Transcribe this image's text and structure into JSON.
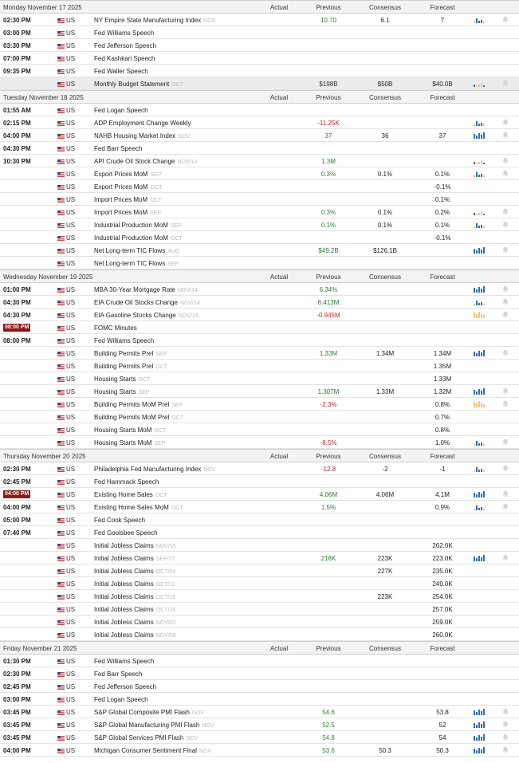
{
  "columns": {
    "actual": "Actual",
    "previous": "Previous",
    "consensus": "Consensus",
    "forecast": "Forecast"
  },
  "colors": {
    "positive": "#2e7d32",
    "negative": "#c62828",
    "badge": "#8b1a1a",
    "chart_blue": "#2f6db5",
    "chart_orange": "#f5c57a"
  },
  "days": [
    {
      "title": "Monday November 17 2025",
      "rows": [
        {
          "time": "02:30 PM",
          "country": "US",
          "event": "NY Empire State Manufacturing Index",
          "ref": "NOV",
          "actual": "",
          "previous": "10.70",
          "previous_tone": "pos",
          "consensus": "6.1",
          "forecast": "7",
          "chart": "blue-mixed",
          "bell": true
        },
        {
          "time": "03:00 PM",
          "country": "US",
          "event": "Fed Williams Speech",
          "ref": "",
          "actual": "",
          "previous": "",
          "consensus": "",
          "forecast": "",
          "chart": "",
          "bell": false
        },
        {
          "time": "03:30 PM",
          "country": "US",
          "event": "Fed Jefferson Speech",
          "ref": "",
          "actual": "",
          "previous": "",
          "consensus": "",
          "forecast": "",
          "chart": "",
          "bell": false
        },
        {
          "time": "07:00 PM",
          "country": "US",
          "event": "Fed Kashkari Speech",
          "ref": "",
          "actual": "",
          "previous": "",
          "consensus": "",
          "forecast": "",
          "chart": "",
          "bell": false
        },
        {
          "time": "09:35 PM",
          "country": "US",
          "event": "Fed Waller Speech",
          "ref": "",
          "actual": "",
          "previous": "",
          "consensus": "",
          "forecast": "",
          "chart": "",
          "bell": false
        },
        {
          "time": "",
          "country": "US",
          "event": "Monthly Budget Statement",
          "ref": "OCT",
          "actual": "",
          "previous": "$198B",
          "previous_tone": "neu",
          "consensus": "$50B",
          "forecast": "$40.0B",
          "chart": "mixed",
          "bell": true,
          "highlight": true
        }
      ]
    },
    {
      "title": "Tuesday November 18 2025",
      "rows": [
        {
          "time": "01:55 AM",
          "country": "US",
          "event": "Fed Logan Speech",
          "ref": "",
          "actual": "",
          "previous": "",
          "consensus": "",
          "forecast": "",
          "chart": "",
          "bell": false
        },
        {
          "time": "02:15 PM",
          "country": "US",
          "event": "ADP Employment Change Weekly",
          "ref": "",
          "actual": "",
          "previous": "-11.25K",
          "previous_tone": "neg",
          "consensus": "",
          "forecast": "",
          "chart": "blue-mixed",
          "bell": true
        },
        {
          "time": "04:00 PM",
          "country": "US",
          "event": "NAHB Housing Market Index",
          "ref": "NOV",
          "actual": "",
          "previous": "37",
          "previous_tone": "pos",
          "consensus": "36",
          "forecast": "37",
          "chart": "blue",
          "bell": true
        },
        {
          "time": "04:30 PM",
          "country": "US",
          "event": "Fed Barr Speech",
          "ref": "",
          "actual": "",
          "previous": "",
          "consensus": "",
          "forecast": "",
          "chart": "",
          "bell": false
        },
        {
          "time": "10:30 PM",
          "country": "US",
          "event": "API Crude Oil Stock Change",
          "ref": "NOV/14",
          "actual": "",
          "previous": "1.3M",
          "previous_tone": "pos",
          "consensus": "",
          "forecast": "",
          "chart": "mixed",
          "bell": true
        },
        {
          "time": "",
          "country": "US",
          "event": "Export Prices MoM",
          "ref": "SEP",
          "actual": "",
          "previous": "0.3%",
          "previous_tone": "pos",
          "consensus": "0.1%",
          "forecast": "0.1%",
          "chart": "blue-mixed",
          "bell": true
        },
        {
          "time": "",
          "country": "US",
          "event": "Export Prices MoM",
          "ref": "OCT",
          "actual": "",
          "previous": "",
          "consensus": "",
          "forecast": "-0.1%",
          "chart": "",
          "bell": false
        },
        {
          "time": "",
          "country": "US",
          "event": "Import Prices MoM",
          "ref": "OCT",
          "actual": "",
          "previous": "",
          "consensus": "",
          "forecast": "0.1%",
          "chart": "",
          "bell": false
        },
        {
          "time": "",
          "country": "US",
          "event": "Import Prices MoM",
          "ref": "SEP",
          "actual": "",
          "previous": "0.3%",
          "previous_tone": "pos",
          "consensus": "0.1%",
          "forecast": "0.2%",
          "chart": "mixed",
          "bell": true
        },
        {
          "time": "",
          "country": "US",
          "event": "Industrial Production MoM",
          "ref": "SEP",
          "actual": "",
          "previous": "0.1%",
          "previous_tone": "pos",
          "consensus": "0.1%",
          "forecast": "0.1%",
          "chart": "blue-mixed",
          "bell": true
        },
        {
          "time": "",
          "country": "US",
          "event": "Industrial Production MoM",
          "ref": "OCT",
          "actual": "",
          "previous": "",
          "consensus": "",
          "forecast": "-0.1%",
          "chart": "",
          "bell": false
        },
        {
          "time": "",
          "country": "US",
          "event": "Net Long-term TIC Flows",
          "ref": "AUG",
          "actual": "",
          "previous": "$49.2B",
          "previous_tone": "pos",
          "consensus": "$126.1B",
          "forecast": "",
          "chart": "blue",
          "bell": true
        },
        {
          "time": "",
          "country": "US",
          "event": "Net Long-term TIC Flows",
          "ref": "SEP",
          "actual": "",
          "previous": "",
          "consensus": "",
          "forecast": "",
          "chart": "",
          "bell": false
        }
      ]
    },
    {
      "title": "Wednesday November 19 2025",
      "rows": [
        {
          "time": "01:00 PM",
          "country": "US",
          "event": "MBA 30-Year Mortgage Rate",
          "ref": "NOV/14",
          "actual": "",
          "previous": "6.34%",
          "previous_tone": "pos",
          "consensus": "",
          "forecast": "",
          "chart": "blue",
          "bell": true
        },
        {
          "time": "04:30 PM",
          "country": "US",
          "event": "EIA Crude Oil Stocks Change",
          "ref": "NOV/14",
          "actual": "",
          "previous": "6.413M",
          "previous_tone": "pos",
          "consensus": "",
          "forecast": "",
          "chart": "blue-mixed",
          "bell": true
        },
        {
          "time": "04:30 PM",
          "country": "US",
          "event": "EIA Gasoline Stocks Change",
          "ref": "NOV/14",
          "actual": "",
          "previous": "-0.945M",
          "previous_tone": "neg",
          "consensus": "",
          "forecast": "",
          "chart": "orange",
          "bell": true
        },
        {
          "time": "08:00 PM",
          "badge": true,
          "country": "US",
          "event": "FOMC Minutes",
          "ref": "",
          "actual": "",
          "previous": "",
          "consensus": "",
          "forecast": "",
          "chart": "",
          "bell": false
        },
        {
          "time": "08:00 PM",
          "country": "US",
          "event": "Fed Williams Speech",
          "ref": "",
          "actual": "",
          "previous": "",
          "consensus": "",
          "forecast": "",
          "chart": "",
          "bell": false
        },
        {
          "time": "",
          "country": "US",
          "event": "Building Permits Prel",
          "ref": "SEP",
          "actual": "",
          "previous": "1.33M",
          "previous_tone": "pos",
          "consensus": "1.34M",
          "forecast": "1.34M",
          "chart": "blue",
          "bell": true
        },
        {
          "time": "",
          "country": "US",
          "event": "Building Permits Prel",
          "ref": "OCT",
          "actual": "",
          "previous": "",
          "consensus": "",
          "forecast": "1.35M",
          "chart": "",
          "bell": false
        },
        {
          "time": "",
          "country": "US",
          "event": "Housing Starts",
          "ref": "OCT",
          "actual": "",
          "previous": "",
          "consensus": "",
          "forecast": "1.33M",
          "chart": "",
          "bell": false
        },
        {
          "time": "",
          "country": "US",
          "event": "Housing Starts",
          "ref": "SEP",
          "actual": "",
          "previous": "1.307M",
          "previous_tone": "pos",
          "consensus": "1.33M",
          "forecast": "1.32M",
          "chart": "blue",
          "bell": true
        },
        {
          "time": "",
          "country": "US",
          "event": "Building Permits MoM Prel",
          "ref": "SEP",
          "actual": "",
          "previous": "-2.3%",
          "previous_tone": "neg",
          "consensus": "",
          "forecast": "0.8%",
          "chart": "orange",
          "bell": true
        },
        {
          "time": "",
          "country": "US",
          "event": "Building Permits MoM Prel",
          "ref": "OCT",
          "actual": "",
          "previous": "",
          "consensus": "",
          "forecast": "0.7%",
          "chart": "",
          "bell": false
        },
        {
          "time": "",
          "country": "US",
          "event": "Housing Starts MoM",
          "ref": "OCT",
          "actual": "",
          "previous": "",
          "consensus": "",
          "forecast": "0.8%",
          "chart": "",
          "bell": false
        },
        {
          "time": "",
          "country": "US",
          "event": "Housing Starts MoM",
          "ref": "SEP",
          "actual": "",
          "previous": "-8.5%",
          "previous_tone": "neg",
          "consensus": "",
          "forecast": "1.0%",
          "chart": "blue-mixed",
          "bell": true
        }
      ]
    },
    {
      "title": "Thursday November 20 2025",
      "rows": [
        {
          "time": "02:30 PM",
          "country": "US",
          "event": "Philadelphia Fed Manufacturing Index",
          "ref": "NOV",
          "actual": "",
          "previous": "-12.8",
          "previous_tone": "neg",
          "consensus": "-2",
          "forecast": "-1",
          "chart": "blue-mixed",
          "bell": true
        },
        {
          "time": "02:45 PM",
          "country": "US",
          "event": "Fed Hammack Speech",
          "ref": "",
          "actual": "",
          "previous": "",
          "consensus": "",
          "forecast": "",
          "chart": "",
          "bell": false
        },
        {
          "time": "04:00 PM",
          "badge": true,
          "country": "US",
          "event": "Existing Home Sales",
          "ref": "OCT",
          "actual": "",
          "previous": "4.06M",
          "previous_tone": "pos",
          "consensus": "4.06M",
          "forecast": "4.1M",
          "chart": "blue",
          "bell": true
        },
        {
          "time": "04:00 PM",
          "country": "US",
          "event": "Existing Home Sales MoM",
          "ref": "OCT",
          "actual": "",
          "previous": "1.5%",
          "previous_tone": "pos",
          "consensus": "",
          "forecast": "0.9%",
          "chart": "blue-mixed",
          "bell": true
        },
        {
          "time": "05:00 PM",
          "country": "US",
          "event": "Fed Cook Speech",
          "ref": "",
          "actual": "",
          "previous": "",
          "consensus": "",
          "forecast": "",
          "chart": "",
          "bell": false
        },
        {
          "time": "07:40 PM",
          "country": "US",
          "event": "Fed Goolsbee Speech",
          "ref": "",
          "actual": "",
          "previous": "",
          "consensus": "",
          "forecast": "",
          "chart": "",
          "bell": false
        },
        {
          "time": "",
          "country": "US",
          "event": "Initial Jobless Claims",
          "ref": "NOV/15",
          "actual": "",
          "previous": "",
          "consensus": "",
          "forecast": "262.0K",
          "chart": "",
          "bell": false
        },
        {
          "time": "",
          "country": "US",
          "event": "Initial Jobless Claims",
          "ref": "SEP/27",
          "actual": "",
          "previous": "218K",
          "previous_tone": "pos",
          "consensus": "223K",
          "forecast": "223.0K",
          "chart": "blue",
          "bell": true
        },
        {
          "time": "",
          "country": "US",
          "event": "Initial Jobless Claims",
          "ref": "OCT/04",
          "actual": "",
          "previous": "",
          "consensus": "227K",
          "forecast": "235.0K",
          "chart": "",
          "bell": false
        },
        {
          "time": "",
          "country": "US",
          "event": "Initial Jobless Claims",
          "ref": "OCT/11",
          "actual": "",
          "previous": "",
          "consensus": "",
          "forecast": "249.0K",
          "chart": "",
          "bell": false
        },
        {
          "time": "",
          "country": "US",
          "event": "Initial Jobless Claims",
          "ref": "OCT/18",
          "actual": "",
          "previous": "",
          "consensus": "223K",
          "forecast": "254.0K",
          "chart": "",
          "bell": false
        },
        {
          "time": "",
          "country": "US",
          "event": "Initial Jobless Claims",
          "ref": "OCT/25",
          "actual": "",
          "previous": "",
          "consensus": "",
          "forecast": "257.0K",
          "chart": "",
          "bell": false
        },
        {
          "time": "",
          "country": "US",
          "event": "Initial Jobless Claims",
          "ref": "NOV/01",
          "actual": "",
          "previous": "",
          "consensus": "",
          "forecast": "259.0K",
          "chart": "",
          "bell": false
        },
        {
          "time": "",
          "country": "US",
          "event": "Initial Jobless Claims",
          "ref": "NOV/08",
          "actual": "",
          "previous": "",
          "consensus": "",
          "forecast": "260.0K",
          "chart": "",
          "bell": false
        }
      ]
    },
    {
      "title": "Friday November 21 2025",
      "rows": [
        {
          "time": "01:30 PM",
          "country": "US",
          "event": "Fed Williams Speech",
          "ref": "",
          "actual": "",
          "previous": "",
          "consensus": "",
          "forecast": "",
          "chart": "",
          "bell": false
        },
        {
          "time": "02:30 PM",
          "country": "US",
          "event": "Fed Barr Speech",
          "ref": "",
          "actual": "",
          "previous": "",
          "consensus": "",
          "forecast": "",
          "chart": "",
          "bell": false
        },
        {
          "time": "02:45 PM",
          "country": "US",
          "event": "Fed Jefferson Speech",
          "ref": "",
          "actual": "",
          "previous": "",
          "consensus": "",
          "forecast": "",
          "chart": "",
          "bell": false
        },
        {
          "time": "03:00 PM",
          "country": "US",
          "event": "Fed Logan Speech",
          "ref": "",
          "actual": "",
          "previous": "",
          "consensus": "",
          "forecast": "",
          "chart": "",
          "bell": false
        },
        {
          "time": "03:45 PM",
          "country": "US",
          "event": "S&P Global Composite PMI Flash",
          "ref": "NOV",
          "actual": "",
          "previous": "54.6",
          "previous_tone": "pos",
          "consensus": "",
          "forecast": "53.8",
          "chart": "blue",
          "bell": true
        },
        {
          "time": "03:45 PM",
          "country": "US",
          "event": "S&P Global Manufacturing PMI Flash",
          "ref": "NOV",
          "actual": "",
          "previous": "52.5",
          "previous_tone": "pos",
          "consensus": "",
          "forecast": "52",
          "chart": "blue",
          "bell": true
        },
        {
          "time": "03:45 PM",
          "country": "US",
          "event": "S&P Global Services PMI Flash",
          "ref": "NOV",
          "actual": "",
          "previous": "54.8",
          "previous_tone": "pos",
          "consensus": "",
          "forecast": "54",
          "chart": "blue",
          "bell": true
        },
        {
          "time": "04:00 PM",
          "country": "US",
          "event": "Michigan Consumer Sentiment Final",
          "ref": "NOV",
          "actual": "",
          "previous": "53.6",
          "previous_tone": "pos",
          "consensus": "50.3",
          "forecast": "50.3",
          "chart": "blue",
          "bell": true
        }
      ]
    }
  ]
}
